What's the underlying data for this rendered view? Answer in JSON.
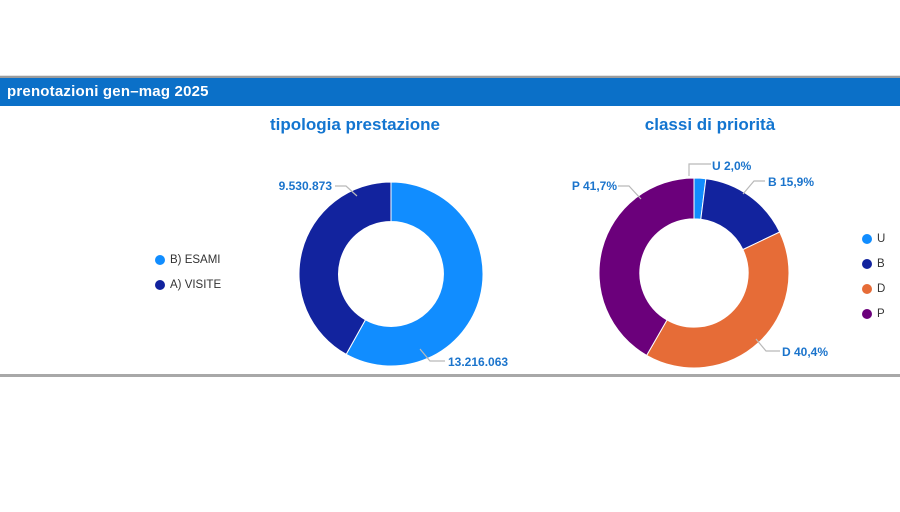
{
  "header": {
    "title": "prenotazioni gen–mag 2025"
  },
  "colors": {
    "header_bar": "#0b70c8",
    "header_text": "#ffffff",
    "title_blue": "#1375d0",
    "label_blue": "#1b74cc",
    "legend_text": "#333333",
    "leader_line": "#b9b9b9",
    "divider": "#a8a8a8",
    "palette_light_blue": "#118DFF",
    "palette_dark_blue": "#12239E",
    "palette_orange": "#E66C37",
    "palette_purple": "#6B007B"
  },
  "charts": [
    {
      "title": "tipologia prestazione",
      "legend": [
        {
          "label": "B) ESAMI",
          "color": "#118DFF"
        },
        {
          "label": "A) VISITE",
          "color": "#12239E"
        }
      ]
    },
    {
      "title": "classi di priorità",
      "legend": [
        {
          "label": "U",
          "color": "#118DFF"
        },
        {
          "label": "B",
          "color": "#12239E"
        },
        {
          "label": "D",
          "color": "#E66C37"
        },
        {
          "label": "P",
          "color": "#6B007B"
        }
      ]
    }
  ],
  "chart_data": [
    {
      "type": "pie",
      "subtype": "donut",
      "title": "tipologia prestazione",
      "categories": [
        "B) ESAMI",
        "A) VISITE"
      ],
      "values": [
        13216063,
        9530873
      ],
      "value_labels": [
        "13.216.063",
        "9.530.873"
      ],
      "colors": [
        "#118DFF",
        "#12239E"
      ],
      "legend_position": "left",
      "start_angle_deg": 0,
      "direction": "clockwise",
      "inner_radius_ratio": 0.57
    },
    {
      "type": "pie",
      "subtype": "donut",
      "title": "classi di priorità",
      "categories": [
        "U",
        "B",
        "D",
        "P"
      ],
      "values_percent": [
        2.0,
        15.9,
        40.4,
        41.7
      ],
      "value_labels": [
        "U 2,0%",
        "B 15,9%",
        "D 40,4%",
        "P 41,7%"
      ],
      "colors": [
        "#118DFF",
        "#12239E",
        "#E66C37",
        "#6B007B"
      ],
      "legend_position": "right",
      "start_angle_deg": 0,
      "direction": "clockwise",
      "inner_radius_ratio": 0.57
    }
  ]
}
